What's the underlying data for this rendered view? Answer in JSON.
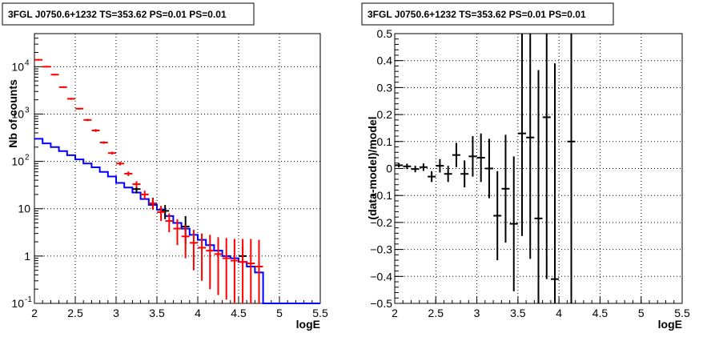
{
  "chart_data": [
    {
      "type": "scatter",
      "title": "3FGL J0750.6+1232 TS=353.62 PS=0.01 PS=0.01",
      "xlabel": "logE",
      "ylabel": "Nb of counts",
      "xlim": [
        2,
        5.5
      ],
      "ylim": [
        0.1,
        50000
      ],
      "yscale": "log",
      "grid": true,
      "x_ticks": [
        "2",
        "2.5",
        "3",
        "3.5",
        "4",
        "4.5",
        "5",
        "5.5"
      ],
      "y_ticks": [
        {
          "value": 0.1,
          "label": "10",
          "sup": "-1"
        },
        {
          "value": 1,
          "label": "1",
          "sup": ""
        },
        {
          "value": 10,
          "label": "10",
          "sup": ""
        },
        {
          "value": 100,
          "label": "10",
          "sup": "2"
        },
        {
          "value": 1000,
          "label": "10",
          "sup": "3"
        },
        {
          "value": 10000,
          "label": "10",
          "sup": "4"
        }
      ],
      "series": [
        {
          "kind": "step",
          "color": "#0000ff",
          "x": [
            2.0,
            2.1,
            2.2,
            2.3,
            2.4,
            2.5,
            2.6,
            2.7,
            2.8,
            2.9,
            3.0,
            3.1,
            3.2,
            3.3,
            3.4,
            3.5,
            3.6,
            3.7,
            3.8,
            3.9,
            4.0,
            4.1,
            4.2,
            4.3,
            4.4,
            4.5,
            4.6,
            4.7,
            4.8,
            4.9,
            5.0,
            5.1,
            5.2,
            5.3,
            5.4
          ],
          "y": [
            300,
            240,
            200,
            165,
            135,
            110,
            90,
            75,
            60,
            48,
            35,
            28,
            22,
            16,
            12,
            9.5,
            7,
            5,
            3.8,
            2.8,
            2.2,
            1.7,
            1.3,
            1.0,
            0.9,
            0.75,
            0.6,
            0.45,
            0.1,
            0.1,
            0.1,
            0.1,
            0.1,
            0.1,
            0.1
          ]
        },
        {
          "kind": "errorbar",
          "color": "#000000",
          "x": [
            3.25,
            3.45,
            3.6,
            3.85,
            4.55
          ],
          "y": [
            26,
            13,
            9,
            4.2,
            1.0
          ],
          "yerr_low": [
            21,
            9.5,
            6,
            1.8,
            0.7
          ],
          "yerr_high": [
            32,
            17,
            12,
            7,
            1.6
          ]
        },
        {
          "kind": "errorbar",
          "color": "#ff0000",
          "x": [
            2.05,
            2.15,
            2.25,
            2.35,
            2.45,
            2.55,
            2.65,
            2.75,
            2.85,
            2.95,
            3.05,
            3.15,
            3.25,
            3.35,
            3.45,
            3.55,
            3.65,
            3.75,
            3.85,
            3.95,
            4.05,
            4.15,
            4.25,
            4.35,
            4.45,
            4.55,
            4.65,
            4.75
          ],
          "y": [
            14000,
            10000,
            6800,
            3700,
            2100,
            1300,
            750,
            450,
            250,
            150,
            90,
            55,
            33,
            20,
            13,
            8.5,
            5.5,
            3.8,
            2.6,
            1.9,
            1.5,
            1.3,
            1.1,
            0.9,
            0.8,
            0.75,
            0.7,
            0.6
          ],
          "yerr_low": [
            13500,
            9600,
            6500,
            3550,
            2000,
            1250,
            710,
            420,
            235,
            140,
            82,
            49,
            28,
            16,
            9.5,
            5.5,
            3.2,
            1.7,
            0.9,
            0.5,
            0.3,
            0.2,
            0.15,
            0.12,
            0.1,
            0.1,
            0.1,
            0.1
          ],
          "yerr_high": [
            14500,
            10400,
            7100,
            3850,
            2200,
            1350,
            790,
            480,
            265,
            160,
            98,
            61,
            38,
            24,
            16.5,
            11.5,
            8,
            6,
            4.5,
            3.6,
            3.0,
            2.8,
            2.5,
            2.4,
            2.3,
            2.3,
            2.3,
            2.2
          ]
        }
      ]
    },
    {
      "type": "scatter",
      "title": "3FGL J0750.6+1232 TS=353.62 PS=0.01 PS=0.01",
      "xlabel": "logE",
      "ylabel": "(data-model)/model",
      "xlim": [
        2,
        5.5
      ],
      "ylim": [
        -0.5,
        0.5
      ],
      "grid": true,
      "x_ticks": [
        "2",
        "2.5",
        "3",
        "3.5",
        "4",
        "4.5",
        "5",
        "5.5"
      ],
      "y_ticks": [
        "-0.5",
        "-0.4",
        "-0.3",
        "-0.2",
        "-0.1",
        "0",
        "0.1",
        "0.2",
        "0.3",
        "0.4",
        "0.5"
      ],
      "series": [
        {
          "kind": "errorbar",
          "color": "#000000",
          "x": [
            2.05,
            2.15,
            2.25,
            2.35,
            2.45,
            2.55,
            2.65,
            2.75,
            2.85,
            2.95,
            3.05,
            3.15,
            3.25,
            3.35,
            3.45,
            3.55,
            3.65,
            3.75,
            3.85,
            3.95,
            4.15
          ],
          "y": [
            0.012,
            0.008,
            -0.002,
            0.005,
            -0.03,
            0.01,
            -0.02,
            0.05,
            -0.02,
            0.045,
            0.04,
            0.0,
            -0.175,
            -0.075,
            -0.205,
            0.13,
            0.115,
            -0.185,
            0.19,
            -0.41,
            0.1
          ],
          "yerr": [
            0.008,
            0.01,
            0.012,
            0.014,
            0.02,
            0.025,
            0.03,
            0.045,
            0.05,
            0.075,
            0.09,
            0.11,
            0.165,
            0.2,
            0.25,
            0.38,
            0.45,
            0.55,
            0.6,
            0.8,
            0.9
          ]
        }
      ]
    }
  ]
}
